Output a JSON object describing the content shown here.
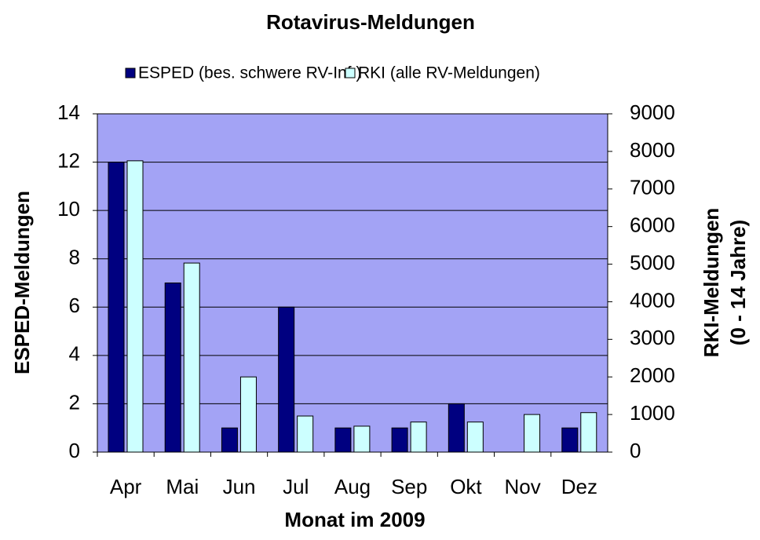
{
  "chart_data": {
    "type": "bar",
    "title": "Rotavirus-Meldungen",
    "xlabel": "Monat im 2009",
    "ylabel": "ESPED-Meldungen",
    "y2label": [
      "RKI-Meldungen",
      "(0 - 14 Jahre)"
    ],
    "categories": [
      "Apr",
      "Mai",
      "Jun",
      "Jul",
      "Aug",
      "Sep",
      "Okt",
      "Nov",
      "Dez"
    ],
    "series": [
      {
        "name": "ESPED (bes. schwere RV-Inf.)",
        "color": "#000080",
        "values": [
          12,
          7,
          1,
          6,
          1,
          1,
          2,
          0,
          1
        ]
      },
      {
        "name": "RKI (alle RV-Meldungen)",
        "color": "#ccffff",
        "axis": "y2",
        "values": [
          7750,
          5030,
          2000,
          960,
          690,
          800,
          800,
          1000,
          1050
        ]
      }
    ],
    "ylim": [
      0,
      14
    ],
    "yticks": [
      0,
      2,
      4,
      6,
      8,
      10,
      12,
      14
    ],
    "y2lim": [
      0,
      9000
    ],
    "y2ticks": [
      0,
      1000,
      2000,
      3000,
      4000,
      5000,
      6000,
      7000,
      8000,
      9000
    ],
    "grid": true,
    "plot_background": "#a3a3f5",
    "legend": "top"
  }
}
